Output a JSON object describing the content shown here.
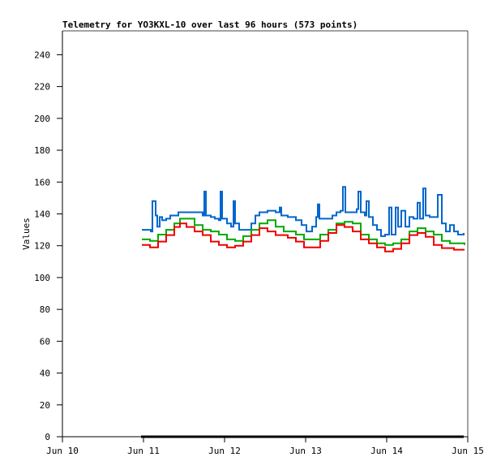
{
  "chart_data": {
    "type": "line",
    "title": "Telemetry for YO3KXL-10 over last 96 hours (573 points)",
    "xlabel": "",
    "ylabel": "Values",
    "x_unit": "day of June",
    "xlim": [
      10,
      15
    ],
    "ylim": [
      0,
      255
    ],
    "x_ticks": [
      {
        "value": 10,
        "label": "Jun 10"
      },
      {
        "value": 11,
        "label": "Jun 11"
      },
      {
        "value": 12,
        "label": "Jun 12"
      },
      {
        "value": 13,
        "label": "Jun 13"
      },
      {
        "value": 14,
        "label": "Jun 14"
      },
      {
        "value": 15,
        "label": "Jun 15"
      }
    ],
    "y_ticks": [
      0,
      20,
      40,
      60,
      80,
      100,
      120,
      140,
      160,
      180,
      200,
      220,
      240
    ],
    "grid": false,
    "legend": "none",
    "series": [
      {
        "color": "#0066cc",
        "points": [
          [
            10.98,
            130
          ],
          [
            11.09,
            129
          ],
          [
            11.11,
            148
          ],
          [
            11.13,
            148
          ],
          [
            11.15,
            139
          ],
          [
            11.17,
            132
          ],
          [
            11.2,
            138
          ],
          [
            11.23,
            136
          ],
          [
            11.28,
            137
          ],
          [
            11.33,
            139
          ],
          [
            11.43,
            141
          ],
          [
            11.53,
            141
          ],
          [
            11.63,
            141
          ],
          [
            11.73,
            139
          ],
          [
            11.75,
            154
          ],
          [
            11.77,
            139
          ],
          [
            11.83,
            138
          ],
          [
            11.88,
            137
          ],
          [
            11.93,
            136
          ],
          [
            11.95,
            154
          ],
          [
            11.97,
            137
          ],
          [
            12.03,
            134
          ],
          [
            12.08,
            132
          ],
          [
            12.11,
            148
          ],
          [
            12.13,
            134
          ],
          [
            12.18,
            130
          ],
          [
            12.28,
            130
          ],
          [
            12.33,
            134
          ],
          [
            12.38,
            139
          ],
          [
            12.43,
            141
          ],
          [
            12.53,
            142
          ],
          [
            12.63,
            141
          ],
          [
            12.68,
            144
          ],
          [
            12.7,
            139
          ],
          [
            12.78,
            138
          ],
          [
            12.88,
            136
          ],
          [
            12.95,
            133
          ],
          [
            13.01,
            129
          ],
          [
            13.08,
            132
          ],
          [
            13.13,
            138
          ],
          [
            13.15,
            146
          ],
          [
            13.17,
            137
          ],
          [
            13.23,
            137
          ],
          [
            13.33,
            139
          ],
          [
            13.38,
            141
          ],
          [
            13.43,
            142
          ],
          [
            13.46,
            157
          ],
          [
            13.49,
            141
          ],
          [
            13.53,
            141
          ],
          [
            13.63,
            143
          ],
          [
            13.65,
            154
          ],
          [
            13.68,
            141
          ],
          [
            13.73,
            139
          ],
          [
            13.75,
            148
          ],
          [
            13.78,
            138
          ],
          [
            13.83,
            133
          ],
          [
            13.88,
            130
          ],
          [
            13.93,
            126
          ],
          [
            13.98,
            127
          ],
          [
            14.03,
            144
          ],
          [
            14.06,
            127
          ],
          [
            14.11,
            144
          ],
          [
            14.14,
            132
          ],
          [
            14.18,
            142
          ],
          [
            14.23,
            132
          ],
          [
            14.28,
            138
          ],
          [
            14.33,
            137
          ],
          [
            14.38,
            147
          ],
          [
            14.41,
            137
          ],
          [
            14.45,
            156
          ],
          [
            14.48,
            139
          ],
          [
            14.53,
            138
          ],
          [
            14.63,
            152
          ],
          [
            14.68,
            134
          ],
          [
            14.73,
            129
          ],
          [
            14.78,
            133
          ],
          [
            14.83,
            129
          ],
          [
            14.88,
            127
          ],
          [
            14.95,
            128
          ]
        ]
      },
      {
        "color": "#00aa00",
        "points": [
          [
            10.98,
            124
          ],
          [
            11.08,
            123
          ],
          [
            11.18,
            127
          ],
          [
            11.28,
            130
          ],
          [
            11.38,
            134
          ],
          [
            11.45,
            137
          ],
          [
            11.53,
            137
          ],
          [
            11.63,
            133
          ],
          [
            11.73,
            130
          ],
          [
            11.83,
            129
          ],
          [
            11.93,
            127
          ],
          [
            12.03,
            124
          ],
          [
            12.13,
            123
          ],
          [
            12.23,
            126
          ],
          [
            12.33,
            130
          ],
          [
            12.43,
            134
          ],
          [
            12.53,
            136
          ],
          [
            12.63,
            132
          ],
          [
            12.73,
            129
          ],
          [
            12.88,
            127
          ],
          [
            12.98,
            124
          ],
          [
            13.08,
            124
          ],
          [
            13.18,
            127
          ],
          [
            13.28,
            130
          ],
          [
            13.38,
            134
          ],
          [
            13.48,
            135
          ],
          [
            13.58,
            134
          ],
          [
            13.68,
            127
          ],
          [
            13.78,
            124
          ],
          [
            13.88,
            121.5
          ],
          [
            13.98,
            120.5
          ],
          [
            14.08,
            121.5
          ],
          [
            14.18,
            124
          ],
          [
            14.28,
            129
          ],
          [
            14.38,
            131
          ],
          [
            14.48,
            129
          ],
          [
            14.58,
            127
          ],
          [
            14.68,
            123
          ],
          [
            14.78,
            121.5
          ],
          [
            14.96,
            120.5
          ]
        ]
      },
      {
        "color": "#ee0000",
        "points": [
          [
            10.98,
            120.5
          ],
          [
            11.08,
            119
          ],
          [
            11.18,
            122.6
          ],
          [
            11.28,
            126.7
          ],
          [
            11.38,
            131.8
          ],
          [
            11.45,
            134
          ],
          [
            11.53,
            131.8
          ],
          [
            11.63,
            129
          ],
          [
            11.73,
            126.7
          ],
          [
            11.83,
            122.6
          ],
          [
            11.93,
            120.5
          ],
          [
            12.03,
            119
          ],
          [
            12.13,
            120
          ],
          [
            12.23,
            122.6
          ],
          [
            12.33,
            126.7
          ],
          [
            12.43,
            131
          ],
          [
            12.53,
            129
          ],
          [
            12.63,
            126.7
          ],
          [
            12.78,
            125
          ],
          [
            12.88,
            122.6
          ],
          [
            12.98,
            119
          ],
          [
            13.08,
            119
          ],
          [
            13.18,
            123
          ],
          [
            13.28,
            128
          ],
          [
            13.38,
            133
          ],
          [
            13.48,
            131.8
          ],
          [
            13.58,
            129
          ],
          [
            13.68,
            124
          ],
          [
            13.78,
            121.5
          ],
          [
            13.88,
            119
          ],
          [
            13.98,
            116.4
          ],
          [
            14.08,
            118
          ],
          [
            14.18,
            121.5
          ],
          [
            14.28,
            126.7
          ],
          [
            14.38,
            128
          ],
          [
            14.48,
            125.6
          ],
          [
            14.58,
            120.5
          ],
          [
            14.68,
            118.5
          ],
          [
            14.83,
            117.5
          ],
          [
            14.96,
            117.5
          ]
        ]
      },
      {
        "color": "#000000",
        "points": [
          [
            10.97,
            0
          ],
          [
            14.95,
            0
          ]
        ]
      }
    ]
  }
}
